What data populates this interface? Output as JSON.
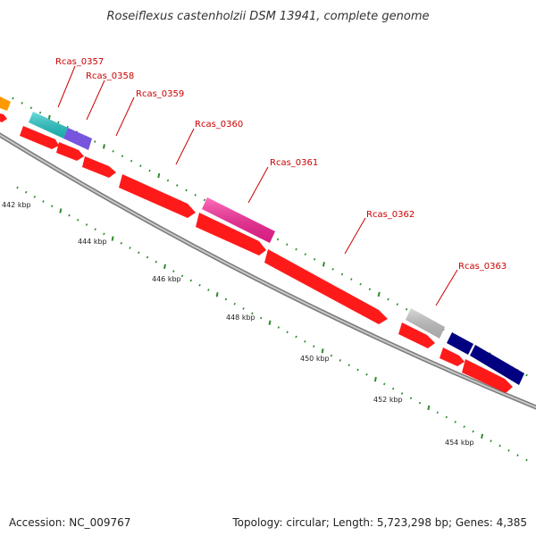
{
  "title": "Roseiflexus castenholzii DSM 13941, complete genome",
  "accession": "Accession: NC_009767",
  "summary": "Topology: circular; Length: 5,723,298 bp; Genes: 4,385",
  "colors": {
    "backbone": "#9a9a9a",
    "tick": "#2e8b2e",
    "gene_label": "#cc0000",
    "label_line": "#cc0000",
    "cds": "#ff1a1a"
  },
  "gene_labels": [
    "Rcas_0357",
    "Rcas_0358",
    "Rcas_0359",
    "Rcas_0360",
    "Rcas_0361",
    "Rcas_0362",
    "Rcas_0363"
  ],
  "kbp_labels": [
    "442 kbp",
    "444 kbp",
    "446 kbp",
    "448 kbp",
    "450 kbp",
    "452 kbp",
    "454 kbp"
  ],
  "feature_colors": [
    "#ff9900",
    "#22cccc",
    "#7755dd",
    "#ff2299",
    "#c8c8c8",
    "#000080",
    "#000080"
  ]
}
